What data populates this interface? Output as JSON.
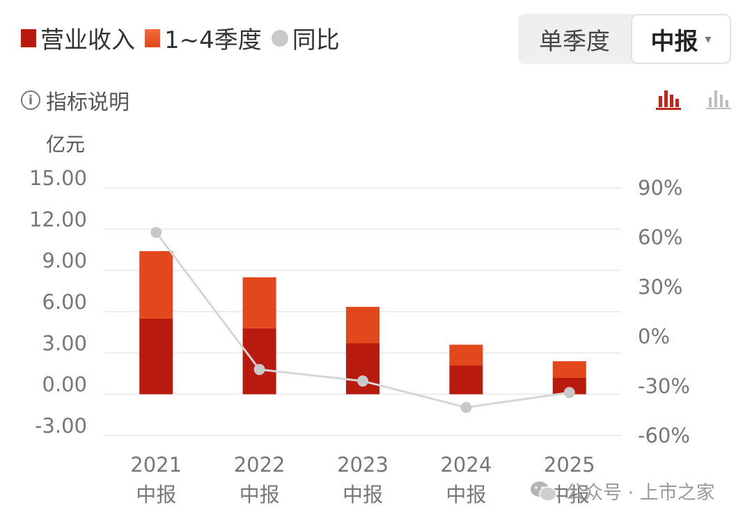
{
  "legend": {
    "revenue_label": "营业收入",
    "quarter_label": "1~4季度",
    "yoy_label": "同比"
  },
  "toggle": {
    "single_quarter": "单季度",
    "selected": "中报",
    "caret": "▾"
  },
  "info": {
    "label": "指标说明",
    "icon": "info-icon",
    "glyph": "i"
  },
  "view_icons": [
    "bar-chart-active-icon",
    "bar-chart-inactive-icon"
  ],
  "unit_label": "亿元",
  "colors": {
    "revenue": "#b81a0e",
    "quarter": "#e2481b",
    "yoy": "#c9c9c9",
    "grid": "#ececec",
    "axis_text": "#777777"
  },
  "chart_data": {
    "type": "bar",
    "categories": [
      [
        "2021",
        "中报"
      ],
      [
        "2022",
        "中报"
      ],
      [
        "2023",
        "中报"
      ],
      [
        "2024",
        "中报"
      ],
      [
        "2025",
        "中报"
      ]
    ],
    "series": [
      {
        "name": "营业收入",
        "values": [
          5.5,
          4.8,
          3.7,
          2.1,
          1.2
        ]
      },
      {
        "name": "1~4季度",
        "values": [
          4.9,
          3.7,
          2.65,
          1.5,
          1.2
        ]
      },
      {
        "name": "同比",
        "axis": "right",
        "kind": "line",
        "values": [
          63,
          -20,
          -27,
          -43,
          -34
        ]
      }
    ],
    "y_left": {
      "ticks": [
        "15.00",
        "12.00",
        "9.00",
        "6.00",
        "3.00",
        "0.00",
        "-3.00"
      ],
      "range": [
        -3,
        15
      ]
    },
    "y_right": {
      "ticks": [
        "90%",
        "60%",
        "30%",
        "0%",
        "-30%",
        "-60%"
      ],
      "range": [
        -60,
        90
      ]
    },
    "stacked": true,
    "legend_position": "top-left",
    "grid": true
  },
  "watermark": {
    "text": "公众号 · 上市之家",
    "icon": "wechat-icon"
  }
}
